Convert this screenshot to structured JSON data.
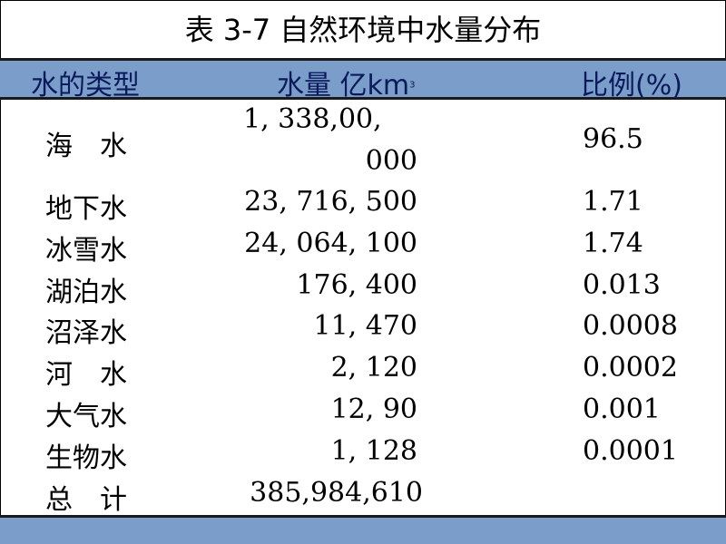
{
  "title": "表 3-7 自然环境中水量分布",
  "header": {
    "type": "水的类型",
    "amount": "水量",
    "unit": "亿km",
    "unit_sup": "3",
    "ratio": "比例(%)"
  },
  "rows": [
    {
      "type": "海水",
      "amount_line1": "1, 338,00,",
      "amount_line2": "000",
      "ratio": "96.5"
    },
    {
      "type": "地下水",
      "amount": "23, 716, 500",
      "ratio": "1.71"
    },
    {
      "type": "冰雪水",
      "amount": "24, 064, 100",
      "ratio": "1.74"
    },
    {
      "type": "湖泊水",
      "amount": "176, 400",
      "ratio": "0.013"
    },
    {
      "type": "沼泽水",
      "amount": "11, 470",
      "ratio": "0.0008"
    },
    {
      "type": "河水",
      "amount": "2, 120",
      "ratio": "0.0002"
    },
    {
      "type": "大气水",
      "amount": "12, 90",
      "ratio": "0.001"
    },
    {
      "type": "生物水",
      "amount": "1, 128",
      "ratio": "0.0001"
    },
    {
      "type": "总计",
      "amount": "385,984,610",
      "ratio": ""
    }
  ]
}
